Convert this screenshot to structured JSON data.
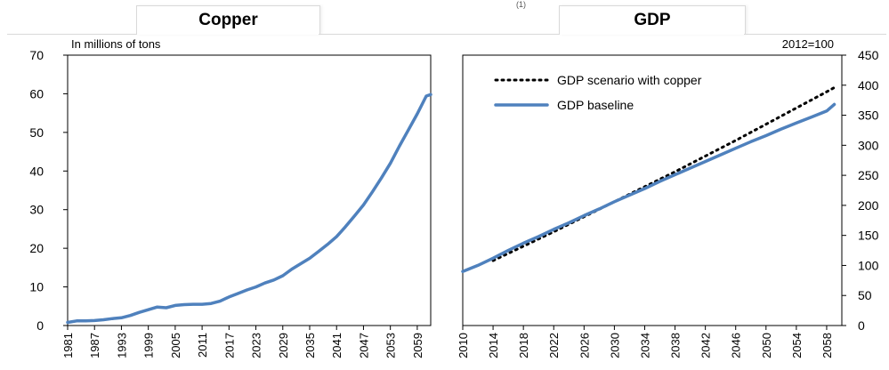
{
  "tabs": {
    "copper": "Copper",
    "gdp": "GDP"
  },
  "top_mark": "(1)",
  "chart_data": [
    {
      "type": "line",
      "title": "Copper",
      "unit_label": "In millions  of tons",
      "xlabel": "",
      "ylabel": "",
      "xlim": [
        1981,
        2062
      ],
      "ylim": [
        0,
        70
      ],
      "yticks": [
        0,
        10,
        20,
        30,
        40,
        50,
        60,
        70
      ],
      "xticks": [
        "1981",
        "1987",
        "1993",
        "1999",
        "2005",
        "2011",
        "2017",
        "2023",
        "2029",
        "2035",
        "2041",
        "2047",
        "2053",
        "2059"
      ],
      "grid": false,
      "series": [
        {
          "name": "",
          "color": "#4f81bd",
          "x": [
            1981,
            1983,
            1985,
            1987,
            1989,
            1991,
            1993,
            1995,
            1997,
            1999,
            2001,
            2003,
            2005,
            2007,
            2009,
            2011,
            2013,
            2015,
            2017,
            2019,
            2021,
            2023,
            2025,
            2027,
            2029,
            2031,
            2033,
            2035,
            2037,
            2039,
            2041,
            2043,
            2045,
            2047,
            2049,
            2051,
            2053,
            2055,
            2057,
            2059,
            2061,
            2062
          ],
          "y": [
            0.8,
            1.2,
            1.2,
            1.3,
            1.5,
            1.8,
            2.0,
            2.6,
            3.4,
            4.1,
            4.8,
            4.6,
            5.2,
            5.4,
            5.5,
            5.5,
            5.7,
            6.3,
            7.4,
            8.3,
            9.2,
            10.0,
            11.0,
            11.8,
            12.9,
            14.6,
            16.0,
            17.4,
            19.2,
            21.0,
            23.0,
            25.6,
            28.4,
            31.2,
            34.6,
            38.2,
            42.0,
            46.4,
            50.6,
            54.8,
            59.4,
            59.8
          ]
        }
      ]
    },
    {
      "type": "line",
      "title": "GDP",
      "unit_label": "2012=100",
      "xlabel": "",
      "ylabel": "",
      "xlim": [
        2010,
        2060
      ],
      "ylim": [
        0,
        450
      ],
      "yticks": [
        0,
        50,
        100,
        150,
        200,
        250,
        300,
        350,
        400,
        450
      ],
      "y_axis_side": "right",
      "xticks": [
        "2010",
        "2014",
        "2018",
        "2022",
        "2026",
        "2030",
        "2034",
        "2038",
        "2042",
        "2046",
        "2050",
        "2054",
        "2058"
      ],
      "grid": false,
      "legend": "top-left",
      "series": [
        {
          "name": "GDP scenario with copper",
          "style": "dotted",
          "color": "#000000",
          "x": [
            2014,
            2018,
            2022,
            2026,
            2030,
            2034,
            2038,
            2042,
            2046,
            2050,
            2054,
            2058,
            2059
          ],
          "y": [
            108,
            132,
            156,
            181,
            206,
            231,
            256,
            282,
            308,
            335,
            362,
            389,
            396
          ]
        },
        {
          "name": "GDP baseline",
          "style": "solid",
          "color": "#4f81bd",
          "x": [
            2010,
            2012,
            2014,
            2016,
            2018,
            2020,
            2022,
            2024,
            2026,
            2028,
            2030,
            2032,
            2034,
            2036,
            2038,
            2040,
            2042,
            2044,
            2046,
            2048,
            2050,
            2052,
            2054,
            2056,
            2058,
            2059
          ],
          "y": [
            90,
            100,
            112,
            125,
            137,
            148,
            160,
            171,
            183,
            194,
            206,
            217,
            228,
            240,
            251,
            262,
            273,
            284,
            295,
            306,
            316,
            327,
            337,
            347,
            357,
            368
          ]
        }
      ]
    }
  ]
}
